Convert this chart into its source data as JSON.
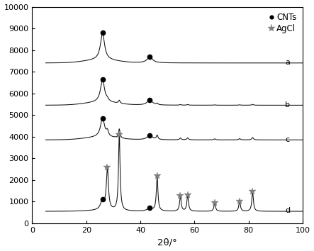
{
  "xlabel": "2θ/°",
  "xlim": [
    5,
    100
  ],
  "ylim": [
    0,
    10000
  ],
  "yticks": [
    0,
    1000,
    2000,
    3000,
    4000,
    5000,
    6000,
    7000,
    8000,
    9000,
    10000
  ],
  "xticks": [
    0,
    20,
    40,
    60,
    80,
    100
  ],
  "background_color": "#ffffff",
  "line_color": "#111111",
  "offsets": {
    "a": 7400,
    "b": 5450,
    "c": 3850,
    "d": 550
  },
  "cnts_peak1": 26.0,
  "cnts_peak2": 43.5,
  "agcl_peaks": [
    27.8,
    32.2,
    46.2,
    54.8,
    57.5,
    67.5,
    76.7,
    81.5
  ],
  "agcl_heights_d": [
    1900,
    3500,
    1600,
    700,
    750,
    380,
    470,
    900
  ],
  "agcl_widths_d": [
    0.45,
    0.35,
    0.35,
    0.35,
    0.35,
    0.35,
    0.35,
    0.35
  ],
  "label_a": "a",
  "label_b": "b",
  "label_c": "c",
  "label_d": "d",
  "legend_cnts": "CNTs",
  "legend_agcl": "AgCl"
}
